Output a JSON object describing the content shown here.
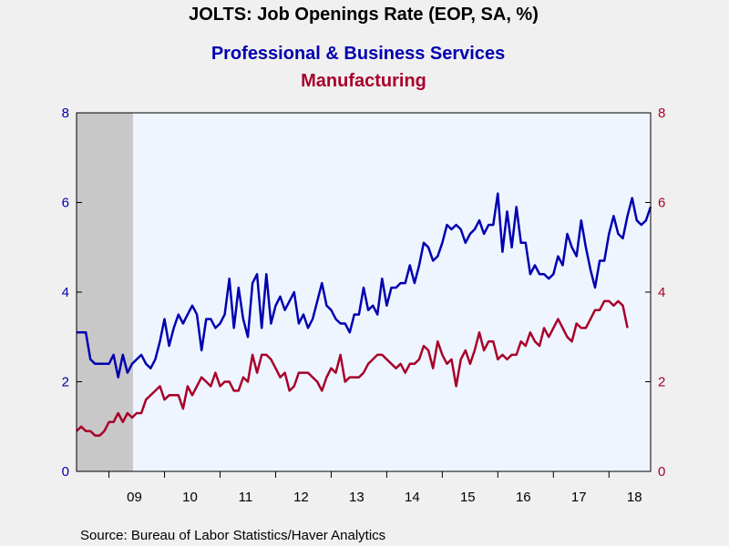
{
  "chart_data": {
    "type": "line",
    "title": "JOLTS: Job Openings Rate (EOP, SA, %)",
    "x_start": "2008-06",
    "x_frequency": "monthly",
    "x_tick_labels": [
      "09",
      "10",
      "11",
      "12",
      "13",
      "14",
      "15",
      "16",
      "17",
      "18"
    ],
    "y_left": {
      "range": [
        0,
        8
      ],
      "ticks": [
        "0",
        "2",
        "4",
        "6",
        "8"
      ]
    },
    "y_right": {
      "range": [
        0,
        8
      ],
      "ticks": [
        "0",
        "2",
        "4",
        "6",
        "8"
      ]
    },
    "grid": false,
    "recession_shading": {
      "from": "2008-06",
      "to": "2009-06",
      "color": "#c8c8c8"
    },
    "plot_background": "#eef5ff",
    "series": [
      {
        "name": "Professional & Business Services",
        "color": "#0000b0",
        "axis": "left",
        "values": [
          3.1,
          3.1,
          3.1,
          2.5,
          2.4,
          2.4,
          2.4,
          2.4,
          2.6,
          2.1,
          2.6,
          2.2,
          2.4,
          2.5,
          2.6,
          2.4,
          2.3,
          2.5,
          2.9,
          3.4,
          2.8,
          3.2,
          3.5,
          3.3,
          3.5,
          3.7,
          3.5,
          2.7,
          3.4,
          3.4,
          3.2,
          3.3,
          3.5,
          4.3,
          3.2,
          4.1,
          3.4,
          3.0,
          4.2,
          4.4,
          3.2,
          4.4,
          3.3,
          3.7,
          3.9,
          3.6,
          3.8,
          4.0,
          3.3,
          3.5,
          3.2,
          3.4,
          3.8,
          4.2,
          3.7,
          3.6,
          3.4,
          3.3,
          3.3,
          3.1,
          3.5,
          3.5,
          4.1,
          3.6,
          3.7,
          3.5,
          4.3,
          3.7,
          4.1,
          4.1,
          4.2,
          4.2,
          4.6,
          4.2,
          4.6,
          5.1,
          5.0,
          4.7,
          4.8,
          5.1,
          5.5,
          5.4,
          5.5,
          5.4,
          5.1,
          5.3,
          5.4,
          5.6,
          5.3,
          5.5,
          5.5,
          6.2,
          4.9,
          5.8,
          5.0,
          5.9,
          5.1,
          5.1,
          4.4,
          4.6,
          4.4,
          4.4,
          4.3,
          4.4,
          4.8,
          4.6,
          5.3,
          5.0,
          4.8,
          5.6,
          5.0,
          4.5,
          4.1,
          4.7,
          4.7,
          5.3,
          5.7,
          5.3,
          5.2,
          5.7,
          6.1,
          5.6,
          5.5,
          5.6,
          5.9
        ]
      },
      {
        "name": "Manufacturing",
        "color": "#a8002a",
        "axis": "right",
        "values": [
          0.9,
          1.0,
          0.9,
          0.9,
          0.8,
          0.8,
          0.9,
          1.1,
          1.1,
          1.3,
          1.1,
          1.3,
          1.2,
          1.3,
          1.3,
          1.6,
          1.7,
          1.8,
          1.9,
          1.6,
          1.7,
          1.7,
          1.7,
          1.4,
          1.9,
          1.7,
          1.9,
          2.1,
          2.0,
          1.9,
          2.2,
          1.9,
          2.0,
          2.0,
          1.8,
          1.8,
          2.1,
          2.0,
          2.6,
          2.2,
          2.6,
          2.6,
          2.5,
          2.3,
          2.1,
          2.2,
          1.8,
          1.9,
          2.2,
          2.2,
          2.2,
          2.1,
          2.0,
          1.8,
          2.1,
          2.3,
          2.2,
          2.6,
          2.0,
          2.1,
          2.1,
          2.1,
          2.2,
          2.4,
          2.5,
          2.6,
          2.6,
          2.5,
          2.4,
          2.3,
          2.4,
          2.2,
          2.4,
          2.4,
          2.5,
          2.8,
          2.7,
          2.3,
          2.9,
          2.6,
          2.4,
          2.5,
          1.9,
          2.5,
          2.7,
          2.4,
          2.7,
          3.1,
          2.7,
          2.9,
          2.9,
          2.5,
          2.6,
          2.5,
          2.6,
          2.6,
          2.9,
          2.8,
          3.1,
          2.9,
          2.8,
          3.2,
          3.0,
          3.2,
          3.4,
          3.2,
          3.0,
          2.9,
          3.3,
          3.2,
          3.2,
          3.4,
          3.6,
          3.6,
          3.8,
          3.8,
          3.7,
          3.8,
          3.7,
          3.2
        ]
      }
    ]
  },
  "source": "Source:  Bureau of Labor Statistics/Haver Analytics"
}
